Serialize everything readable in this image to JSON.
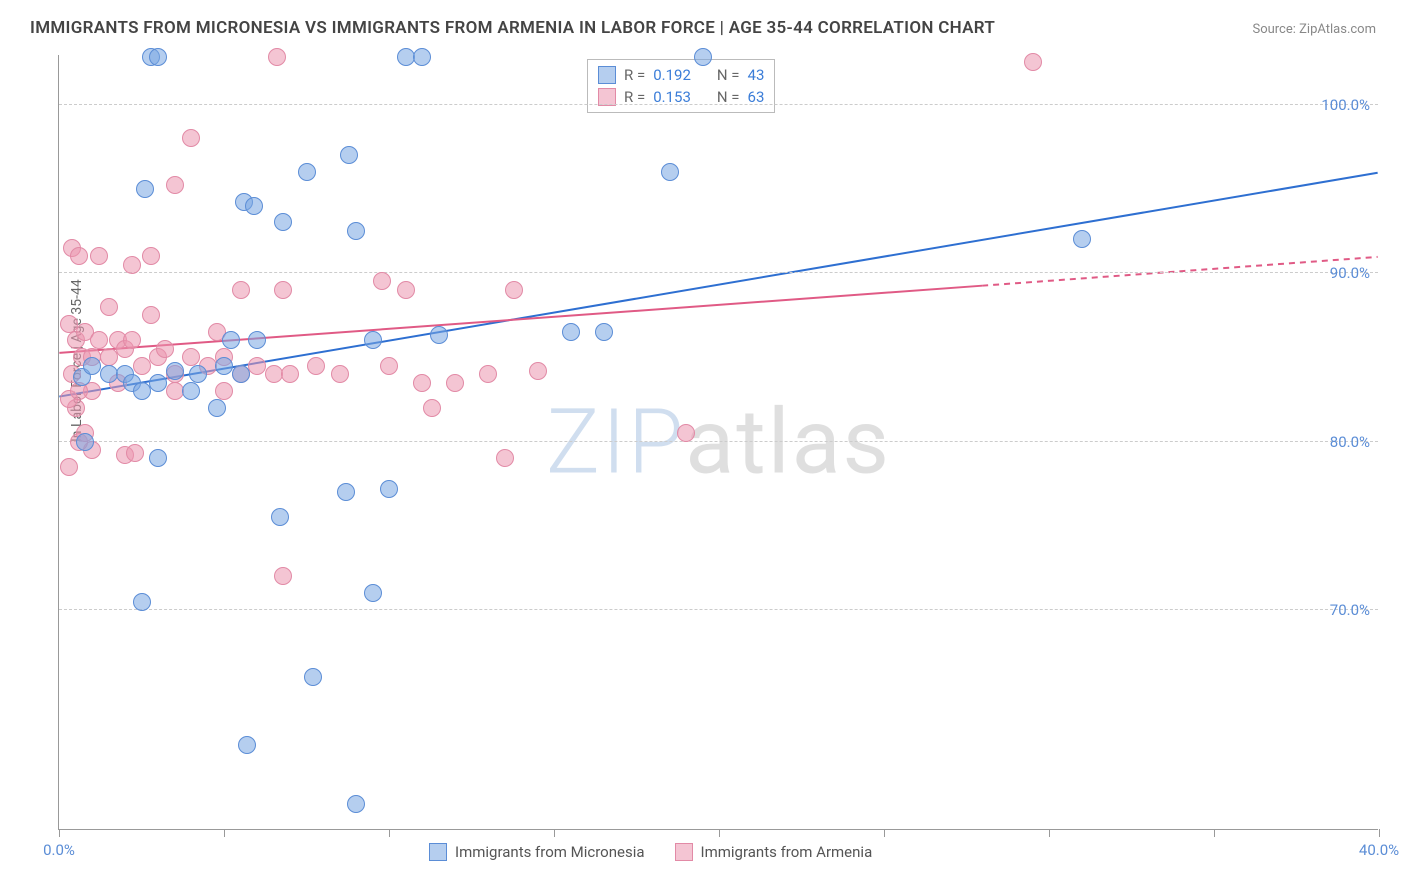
{
  "title": "IMMIGRANTS FROM MICRONESIA VS IMMIGRANTS FROM ARMENIA IN LABOR FORCE | AGE 35-44 CORRELATION CHART",
  "source": "Source: ZipAtlas.com",
  "ylabel": "In Labor Force | Age 35-44",
  "watermark_z": "ZIP",
  "watermark_rest": "atlas",
  "chart": {
    "type": "scatter",
    "xlim": [
      0,
      40
    ],
    "ylim": [
      57,
      103
    ],
    "xticks": [
      0,
      5,
      10,
      15,
      20,
      25,
      30,
      35,
      40
    ],
    "xtick_labels": {
      "0": "0.0%",
      "40": "40.0%"
    },
    "yticks": [
      70,
      80,
      90,
      100
    ],
    "ytick_labels": [
      "70.0%",
      "80.0%",
      "90.0%",
      "100.0%"
    ],
    "grid_color": "#cccccc",
    "background_color": "#ffffff",
    "point_radius": 9,
    "point_stroke_width": 1.5,
    "trend_line_width": 2
  },
  "series": [
    {
      "name": "Immigrants from Micronesia",
      "key": "micronesia",
      "color_fill": "rgba(120,165,225,0.55)",
      "color_stroke": "#5b8dd6",
      "trend_color": "#2e6fd1",
      "R": "0.192",
      "N": "43",
      "trend": {
        "x1": 0,
        "y1": 82.7,
        "x2": 40,
        "y2": 96.0,
        "dashed_from": null
      },
      "points": [
        [
          2.8,
          102.8
        ],
        [
          3.0,
          102.8
        ],
        [
          10.5,
          102.8
        ],
        [
          11.0,
          102.8
        ],
        [
          19.5,
          102.8
        ],
        [
          8.8,
          97.0
        ],
        [
          7.5,
          96.0
        ],
        [
          2.6,
          95.0
        ],
        [
          5.6,
          94.2
        ],
        [
          5.9,
          94.0
        ],
        [
          9.0,
          92.5
        ],
        [
          6.8,
          93.0
        ],
        [
          5.2,
          86.0
        ],
        [
          6.0,
          86.0
        ],
        [
          11.5,
          86.3
        ],
        [
          0.7,
          83.8
        ],
        [
          1.0,
          84.5
        ],
        [
          1.5,
          84.0
        ],
        [
          2.0,
          84.0
        ],
        [
          2.2,
          83.5
        ],
        [
          2.5,
          83.0
        ],
        [
          3.0,
          83.5
        ],
        [
          3.5,
          84.2
        ],
        [
          4.0,
          83.0
        ],
        [
          4.2,
          84.0
        ],
        [
          4.8,
          82.0
        ],
        [
          5.0,
          84.5
        ],
        [
          5.5,
          84.0
        ],
        [
          9.5,
          86.0
        ],
        [
          16.5,
          86.5
        ],
        [
          3.0,
          79.0
        ],
        [
          0.8,
          80.0
        ],
        [
          8.7,
          77.0
        ],
        [
          10.0,
          77.2
        ],
        [
          6.7,
          75.5
        ],
        [
          2.5,
          70.5
        ],
        [
          9.5,
          71.0
        ],
        [
          7.7,
          66.0
        ],
        [
          5.7,
          62.0
        ],
        [
          9.0,
          58.5
        ],
        [
          18.5,
          96.0
        ],
        [
          31.0,
          92.0
        ],
        [
          15.5,
          86.5
        ]
      ]
    },
    {
      "name": "Immigrants from Armenia",
      "key": "armenia",
      "color_fill": "rgba(235,150,175,0.55)",
      "color_stroke": "#e28aa6",
      "trend_color": "#e05a85",
      "R": "0.153",
      "N": "63",
      "trend": {
        "x1": 0,
        "y1": 85.3,
        "x2": 40,
        "y2": 91.0,
        "dashed_from": 28
      },
      "points": [
        [
          6.6,
          102.8
        ],
        [
          29.5,
          102.5
        ],
        [
          4.0,
          98.0
        ],
        [
          3.5,
          95.2
        ],
        [
          0.4,
          91.5
        ],
        [
          0.6,
          91.0
        ],
        [
          1.2,
          91.0
        ],
        [
          2.8,
          91.0
        ],
        [
          2.2,
          90.5
        ],
        [
          5.5,
          89.0
        ],
        [
          6.8,
          89.0
        ],
        [
          9.8,
          89.5
        ],
        [
          10.5,
          89.0
        ],
        [
          13.8,
          89.0
        ],
        [
          0.3,
          87.0
        ],
        [
          0.5,
          86.0
        ],
        [
          0.7,
          85.0
        ],
        [
          0.8,
          86.5
        ],
        [
          1.0,
          85.0
        ],
        [
          1.2,
          86.0
        ],
        [
          1.5,
          85.0
        ],
        [
          1.8,
          86.0
        ],
        [
          2.0,
          85.5
        ],
        [
          2.2,
          86.0
        ],
        [
          2.5,
          84.5
        ],
        [
          3.0,
          85.0
        ],
        [
          3.2,
          85.5
        ],
        [
          3.5,
          84.0
        ],
        [
          4.0,
          85.0
        ],
        [
          4.5,
          84.5
        ],
        [
          5.0,
          85.0
        ],
        [
          5.5,
          84.0
        ],
        [
          6.0,
          84.5
        ],
        [
          6.5,
          84.0
        ],
        [
          7.0,
          84.0
        ],
        [
          7.8,
          84.5
        ],
        [
          8.5,
          84.0
        ],
        [
          10.0,
          84.5
        ],
        [
          11.0,
          83.5
        ],
        [
          3.5,
          83.0
        ],
        [
          5.0,
          83.0
        ],
        [
          1.0,
          83.0
        ],
        [
          0.5,
          82.0
        ],
        [
          0.3,
          82.5
        ],
        [
          1.0,
          79.5
        ],
        [
          2.0,
          79.2
        ],
        [
          2.3,
          79.3
        ],
        [
          0.3,
          78.5
        ],
        [
          0.6,
          80.0
        ],
        [
          12.0,
          83.5
        ],
        [
          13.0,
          84.0
        ],
        [
          14.5,
          84.2
        ],
        [
          19.0,
          80.5
        ],
        [
          13.5,
          79.0
        ],
        [
          11.3,
          82.0
        ],
        [
          6.8,
          72.0
        ],
        [
          0.8,
          80.5
        ],
        [
          0.4,
          84.0
        ],
        [
          0.6,
          83.0
        ],
        [
          1.8,
          83.5
        ],
        [
          4.8,
          86.5
        ],
        [
          2.8,
          87.5
        ],
        [
          1.5,
          88.0
        ]
      ]
    }
  ],
  "legend_top": {
    "r_label": "R =",
    "n_label": "N ="
  }
}
